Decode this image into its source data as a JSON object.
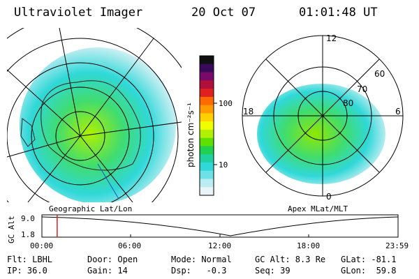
{
  "header": {
    "instrument": "Ultraviolet Imager",
    "date": "20 Oct 07",
    "time": "01:01:48 UT"
  },
  "left_map": {
    "caption": "Geographic Lat/Lon"
  },
  "right_map": {
    "caption": "Apex MLat/MLT",
    "mlt_labels": [
      "12",
      "18",
      "6",
      "0"
    ],
    "lat_labels": [
      "60",
      "70",
      "80"
    ]
  },
  "colorbar": {
    "label": "photon cm⁻²s⁻¹",
    "ticks": [
      "100",
      "10"
    ],
    "colors": [
      "#101010",
      "#3a0a5a",
      "#7a0a6a",
      "#b0103a",
      "#e02020",
      "#ff6a00",
      "#ff9a00",
      "#ffd000",
      "#f0ff00",
      "#b0f000",
      "#60e000",
      "#20d050",
      "#20d0a0",
      "#30d8d8",
      "#70e0e8",
      "#b8ecf0",
      "#e8f4f8"
    ]
  },
  "altitude_plot": {
    "ylabel": "GC Alt",
    "yticks": [
      "9.0",
      "1.8"
    ],
    "xticks": [
      "00:00",
      "06:00",
      "12:00",
      "18:00",
      "23:59"
    ],
    "marker_hour": 1.03
  },
  "status": {
    "flt": "Flt: LBHL",
    "ip": "IP: 36.0",
    "door": "Door: Open",
    "gain": "Gain: 14",
    "mode": "Mode: Normal",
    "dsp": "Dsp:   -0.3",
    "gcalt": "GC Alt: 8.3 Re",
    "seq": "Seq: 39",
    "glat": "GLat: -81.1",
    "glon": "GLon:  59.8"
  }
}
